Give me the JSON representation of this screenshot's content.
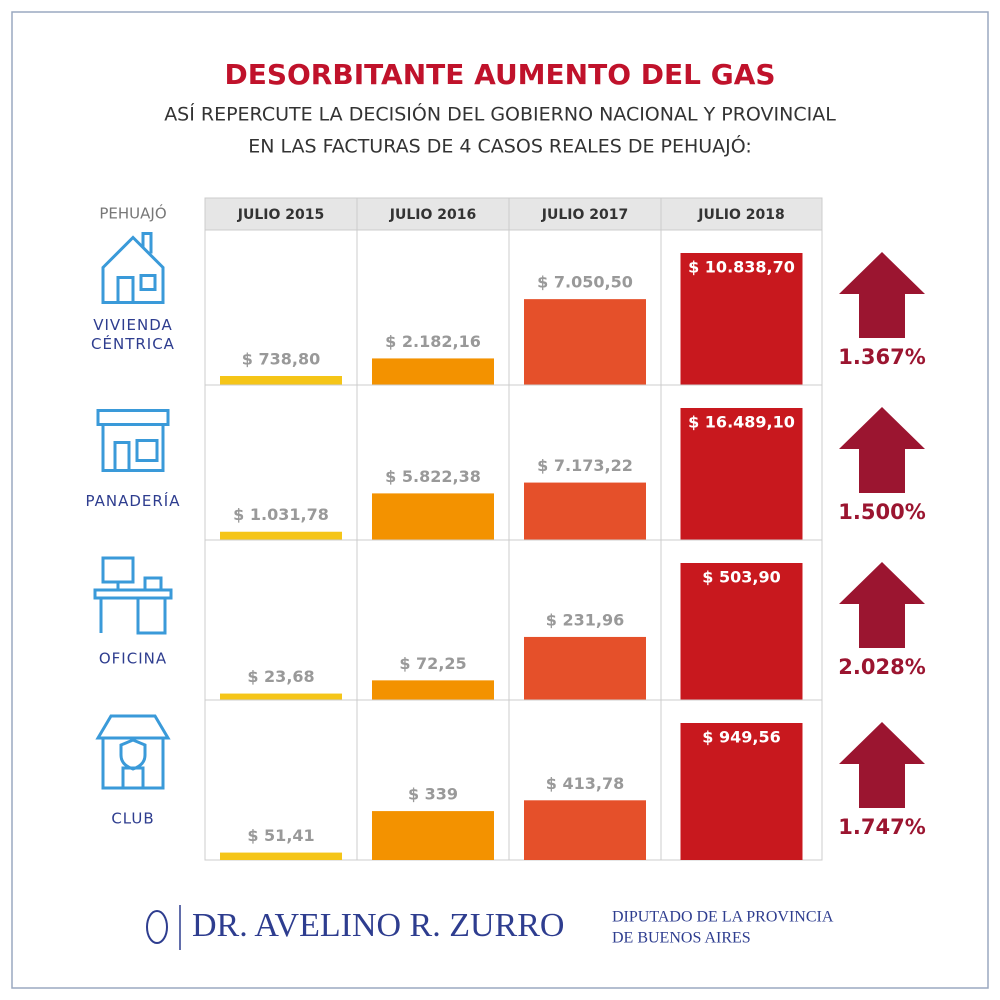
{
  "chart_data": {
    "type": "bar",
    "title": "DESORBITANTE AUMENTO DEL GAS",
    "subtitle": [
      "ASÍ REPERCUTE LA DECISIÓN DEL GOBIERNO NACIONAL Y PROVINCIAL",
      "EN LAS FACTURAS DE 4 CASOS REALES DE PEHUAJÓ:"
    ],
    "region": "PEHUAJÓ",
    "categories": [
      "JULIO 2015",
      "JULIO 2016",
      "JULIO 2017",
      "JULIO 2018"
    ],
    "colors": [
      "#f5c518",
      "#f39200",
      "#e5502a",
      "#c8181e"
    ],
    "rows": [
      {
        "name": [
          "VIVIENDA",
          "CÉNTRICA"
        ],
        "values": [
          738.8,
          2182.16,
          7050.5,
          10838.7
        ],
        "value_labels": [
          "$ 738,80",
          "$ 2.182,16",
          "$ 7.050,50",
          "$ 10.838,70"
        ],
        "change": 1367,
        "change_label": "1.367%"
      },
      {
        "name": [
          "PANADERÍA"
        ],
        "values": [
          1031.78,
          5822.38,
          7173.22,
          16489.1
        ],
        "value_labels": [
          "$ 1.031,78",
          "$ 5.822,38",
          "$ 7.173,22",
          "$ 16.489,10"
        ],
        "change": 1500,
        "change_label": "1.500%"
      },
      {
        "name": [
          "OFICINA"
        ],
        "values": [
          23.68,
          72.25,
          231.96,
          503.9
        ],
        "value_labels": [
          "$ 23,68",
          "$ 72,25",
          "$ 231,96",
          "$ 503,90"
        ],
        "change": 2028,
        "change_label": "2.028%"
      },
      {
        "name": [
          "CLUB"
        ],
        "values": [
          51.41,
          339,
          413.78,
          949.56
        ],
        "value_labels": [
          "$ 51,41",
          "$ 339",
          "$ 413,78",
          "$ 949,56"
        ],
        "change": 1747,
        "change_label": "1.747%"
      }
    ],
    "footer": {
      "name": "DR. AVELINO R. ZURRO",
      "role": [
        "DIPUTADO DE LA PROVINCIA",
        "DE BUENOS AIRES"
      ]
    }
  }
}
